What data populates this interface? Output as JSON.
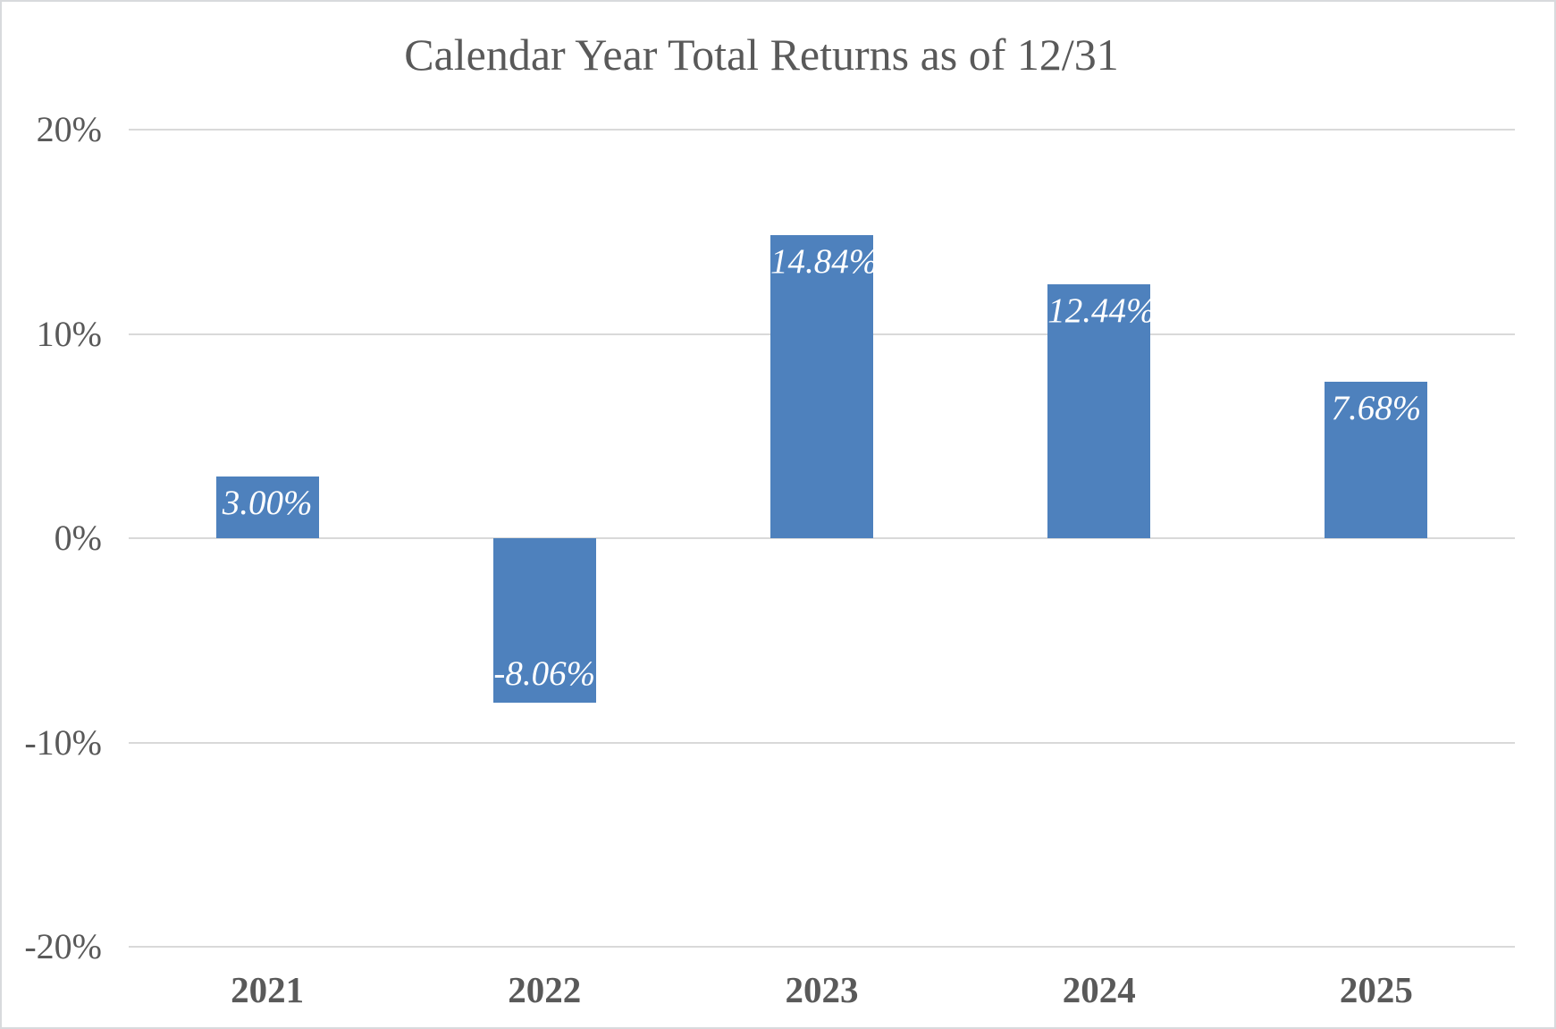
{
  "chart_title": "Calendar Year Total Returns as of 12/31",
  "chart_data": {
    "type": "bar",
    "title": "Calendar Year Total Returns as of 12/31",
    "categories": [
      "2021",
      "2022",
      "2023",
      "2024",
      "2025"
    ],
    "values": [
      3.0,
      -8.06,
      14.84,
      12.44,
      7.68
    ],
    "data_labels": [
      "3.00%",
      "-8.06%",
      "14.84%",
      "12.44%",
      "7.68%"
    ],
    "xlabel": "",
    "ylabel": "",
    "ylim": [
      -20,
      20
    ],
    "y_ticks": [
      {
        "value": 20,
        "label": "20%"
      },
      {
        "value": 10,
        "label": "10%"
      },
      {
        "value": 0,
        "label": "0%"
      },
      {
        "value": -10,
        "label": "-10%"
      },
      {
        "value": -20,
        "label": "-20%"
      }
    ],
    "grid": true,
    "legend_position": "none",
    "data_label_position": "inside-end",
    "colors": {
      "bar_fill": "#4e81bd",
      "data_label_text": "#ffffff",
      "gridline": "#d9d9d9",
      "axis_text": "#595959",
      "title_text": "#595959",
      "background": "#ffffff",
      "frame_border": "#d8dadd"
    }
  }
}
